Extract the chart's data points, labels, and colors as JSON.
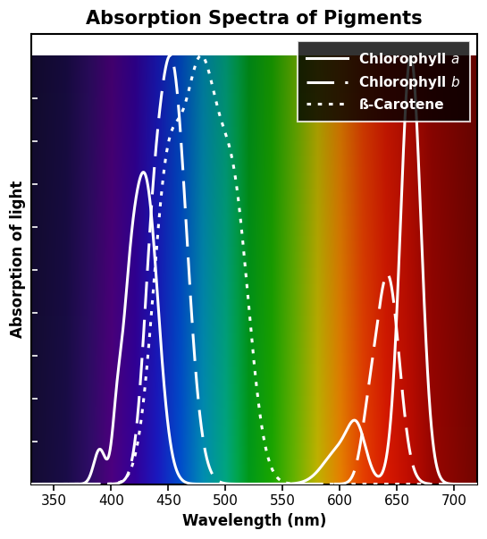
{
  "title": "Absorption Spectra of Pigments",
  "xlabel": "Wavelength (nm)",
  "ylabel": "Absorption of light",
  "xmin": 330,
  "xmax": 720,
  "xticks": [
    350,
    400,
    450,
    500,
    550,
    600,
    650,
    700
  ],
  "title_fontsize": 15,
  "axis_label_fontsize": 12,
  "tick_fontsize": 11,
  "line_width": 2.2,
  "background_colors": {
    "330": [
      0.08,
      0.05,
      0.2
    ],
    "360": [
      0.1,
      0.05,
      0.28
    ],
    "380": [
      0.18,
      0.05,
      0.4
    ],
    "400": [
      0.3,
      0.0,
      0.5
    ],
    "420": [
      0.2,
      0.0,
      0.6
    ],
    "440": [
      0.1,
      0.1,
      0.75
    ],
    "460": [
      0.0,
      0.3,
      0.8
    ],
    "480": [
      0.0,
      0.55,
      0.7
    ],
    "500": [
      0.0,
      0.65,
      0.5
    ],
    "510": [
      0.0,
      0.65,
      0.3
    ],
    "520": [
      0.0,
      0.6,
      0.1
    ],
    "540": [
      0.1,
      0.65,
      0.0
    ],
    "560": [
      0.4,
      0.7,
      0.0
    ],
    "580": [
      0.75,
      0.7,
      0.0
    ],
    "600": [
      0.9,
      0.5,
      0.0
    ],
    "620": [
      0.9,
      0.25,
      0.0
    ],
    "640": [
      0.85,
      0.1,
      0.0
    ],
    "660": [
      0.75,
      0.05,
      0.0
    ],
    "680": [
      0.6,
      0.02,
      0.0
    ],
    "720": [
      0.45,
      0.02,
      0.0
    ]
  },
  "legend_labels": [
    "Chlorophyll $a$",
    "Chlorophyll $b$",
    "ß-Carotene"
  ]
}
